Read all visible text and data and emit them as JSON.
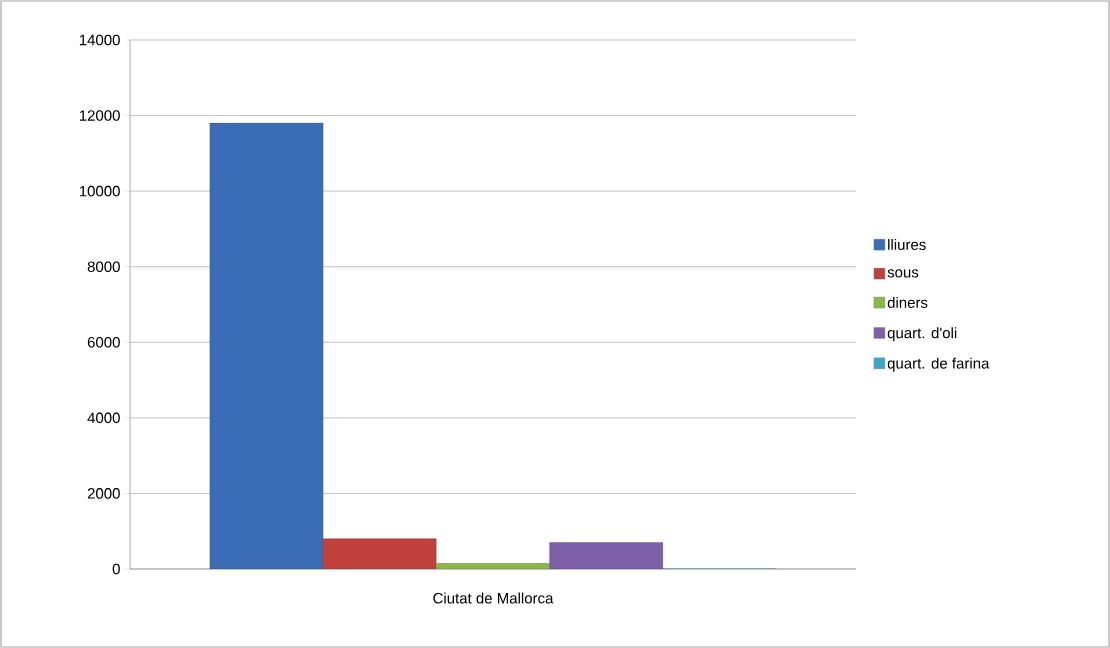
{
  "chart_data": {
    "type": "bar",
    "categories": [
      "Ciutat de Mallorca"
    ],
    "series": [
      {
        "name": "lliures",
        "color": "#3a6db5",
        "values": [
          11800
        ]
      },
      {
        "name": "sous",
        "color": "#c0403c",
        "values": [
          800
        ]
      },
      {
        "name": "diners",
        "color": "#8cb84a",
        "values": [
          150
        ]
      },
      {
        "name": "quart. d'oli",
        "color": "#7e60a8",
        "values": [
          700
        ]
      },
      {
        "name": "quart. de farina",
        "color": "#3ba7c6",
        "values": [
          0
        ]
      }
    ],
    "ylim": [
      0,
      14000
    ],
    "yticks": [
      0,
      2000,
      4000,
      6000,
      8000,
      10000,
      12000,
      14000
    ],
    "grid": "y",
    "legend": "right"
  }
}
